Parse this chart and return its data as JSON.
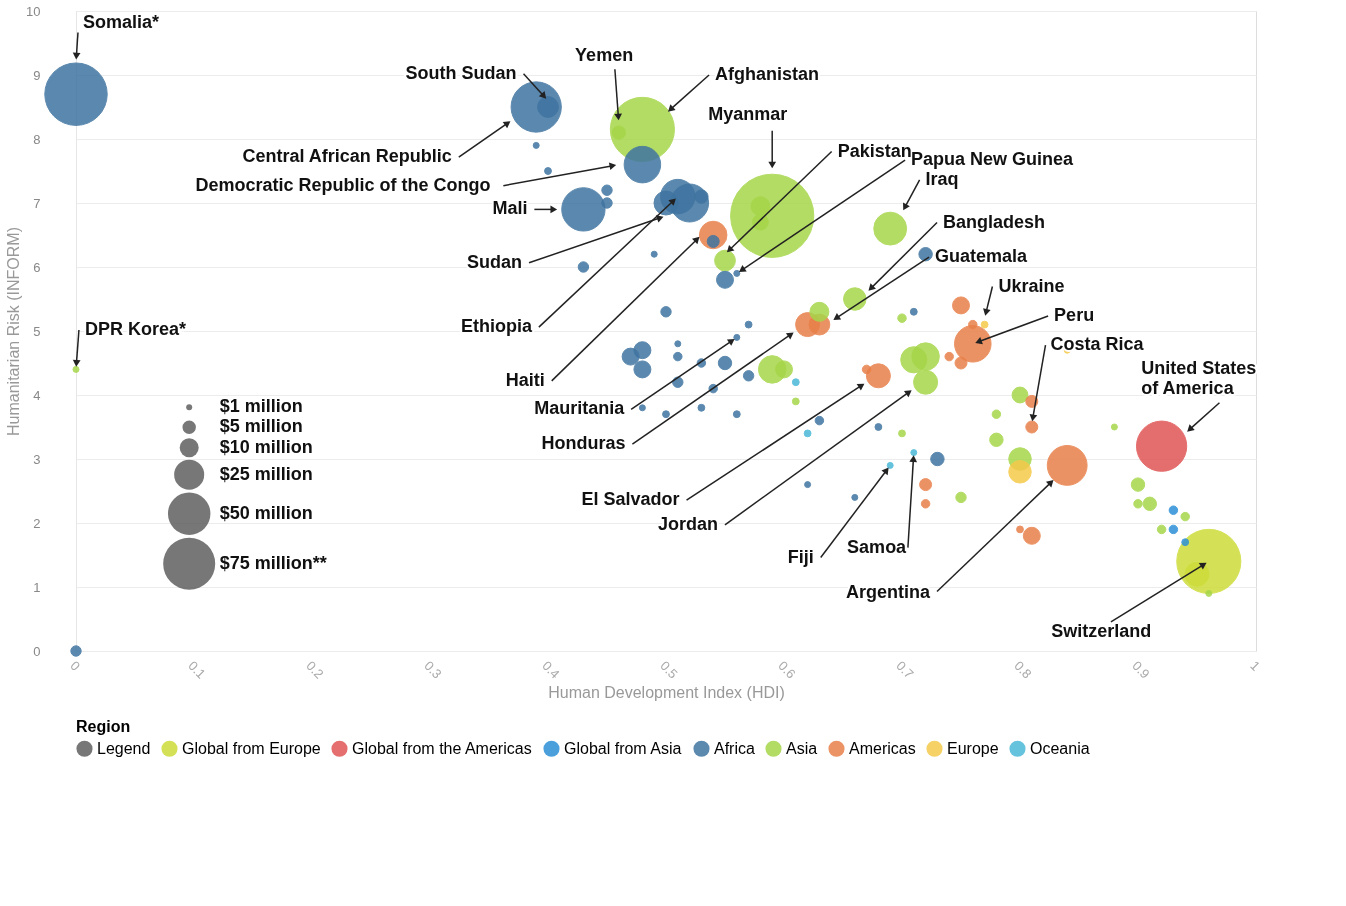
{
  "chart_data": {
    "type": "bubble",
    "xlabel": "Human Development Index (HDI)",
    "ylabel": "Humanitarian Risk (INFORM)",
    "legend_title": "Region",
    "legend": "bottom",
    "grid": "y",
    "xlim": [
      0,
      1
    ],
    "xticks": [
      0,
      0.1,
      0.2,
      0.3,
      0.4,
      0.5,
      0.6,
      0.7,
      0.8,
      0.9,
      1
    ],
    "ylim": [
      0,
      10
    ],
    "yticks": [
      0,
      1,
      2,
      3,
      4,
      5,
      6,
      7,
      8,
      9,
      10
    ],
    "size_legend": [
      {
        "value": 1,
        "label": "$1 million"
      },
      {
        "value": 5,
        "label": "$5 million"
      },
      {
        "value": 10,
        "label": "$10 million"
      },
      {
        "value": 25,
        "label": "$25 million"
      },
      {
        "value": 50,
        "label": "$50 million"
      },
      {
        "value": 75,
        "label": "$75 million**"
      }
    ],
    "series": [
      {
        "name": "Legend",
        "color": "#5f5f5f"
      },
      {
        "name": "Global from Europe",
        "color": "#cddc3a",
        "x": [
          0.96,
          0.95
        ],
        "values": [
          1.4,
          1.2
        ],
        "sizes": [
          114,
          16
        ]
      },
      {
        "name": "Global from the Americas",
        "color": "#e05555",
        "x": [
          0.92
        ],
        "values": [
          3.2
        ],
        "sizes": [
          70
        ]
      },
      {
        "name": "Global from Asia",
        "color": "#2b8fd6",
        "x": [
          0.93,
          0.93,
          0.94
        ],
        "values": [
          2.2,
          1.9,
          1.7
        ],
        "sizes": [
          2,
          2,
          1.3
        ]
      },
      {
        "name": "Africa",
        "color": "#3f74a0",
        "x": [
          0,
          0,
          0.39,
          0.4,
          0.39,
          0.4,
          0.48,
          0.43,
          0.45,
          0.45,
          0.52,
          0.51,
          0.5,
          0.53,
          0.43,
          0.49,
          0.54,
          0.55,
          0.5,
          0.57,
          0.47,
          0.48,
          0.48,
          0.51,
          0.51,
          0.53,
          0.55,
          0.51,
          0.54,
          0.57,
          0.5,
          0.53,
          0.56,
          0.48,
          0.63,
          0.62,
          0.68,
          0.71,
          0.72,
          0.73,
          0.66,
          0.56,
          0.56
        ],
        "values": [
          8.7,
          0,
          8.5,
          8.5,
          7.9,
          7.5,
          7.6,
          6.9,
          7.2,
          7.0,
          7.0,
          7.1,
          7.0,
          7.1,
          6.0,
          6.2,
          6.4,
          5.8,
          5.3,
          5.1,
          4.6,
          4.7,
          4.4,
          4.8,
          4.6,
          4.5,
          4.5,
          4.2,
          4.1,
          4.3,
          3.7,
          3.8,
          3.7,
          3.8,
          3.6,
          2.6,
          3.5,
          5.3,
          6.2,
          3.0,
          2.4,
          5.9,
          4.9
        ],
        "sizes": [
          108,
          3,
          70,
          12,
          1,
          1.3,
          37,
          52,
          3,
          3,
          40,
          33,
          16,
          5,
          3,
          1,
          4,
          8,
          3,
          1.3,
          8,
          8,
          8,
          1,
          2,
          2,
          5,
          3,
          2,
          3,
          1.3,
          1.3,
          1.3,
          1,
          2,
          1,
          1.3,
          1.3,
          5,
          5,
          1,
          1,
          1
        ]
      },
      {
        "name": "Asia",
        "color": "#a6d64a",
        "x": [
          0,
          0.48,
          0.46,
          0.59,
          0.58,
          0.58,
          0.55,
          0.69,
          0.66,
          0.63,
          0.59,
          0.6,
          0.61,
          0.71,
          0.72,
          0.72,
          0.7,
          0.78,
          0.8,
          0.78,
          0.8,
          0.75,
          0.7,
          0.9,
          0.9,
          0.91,
          0.92,
          0.94,
          0.96,
          0.88
        ],
        "values": [
          4.4,
          8.15,
          8.1,
          6.8,
          6.95,
          6.7,
          6.1,
          6.6,
          5.5,
          5.3,
          4.4,
          4.4,
          3.9,
          4.55,
          4.6,
          4.2,
          5.2,
          3.7,
          4.0,
          3.3,
          3.0,
          2.4,
          3.4,
          2.6,
          2.3,
          2.3,
          1.9,
          2.1,
          0.9,
          3.5
        ],
        "sizes": [
          1,
          114,
          5,
          192,
          10,
          7,
          12,
          30,
          14,
          10,
          21,
          8,
          1.3,
          19,
          21,
          16,
          2,
          2,
          7,
          5,
          14,
          3,
          1.3,
          5,
          2,
          5,
          2,
          2,
          1,
          1
        ]
      },
      {
        "name": "Americas",
        "color": "#e8804a",
        "x": [
          0.54,
          0.62,
          0.63,
          0.68,
          0.67,
          0.76,
          0.75,
          0.75,
          0.74,
          0.81,
          0.81,
          0.84,
          0.72,
          0.72,
          0.81,
          0.8,
          0.76
        ],
        "values": [
          6.5,
          5.1,
          5.1,
          4.3,
          4.4,
          4.8,
          5.4,
          4.5,
          4.6,
          3.5,
          3.9,
          2.9,
          2.6,
          2.3,
          1.8,
          1.9,
          5.1
        ],
        "sizes": [
          21,
          16,
          12,
          16,
          2,
          37,
          8,
          4,
          2,
          4,
          4,
          44,
          4,
          2,
          8,
          1.3,
          2
        ]
      },
      {
        "name": "Europe",
        "color": "#f5c94a",
        "x": [
          0.77,
          0.8,
          0.84
        ],
        "values": [
          5.1,
          2.8,
          4.7
        ],
        "sizes": [
          1.3,
          14,
          1
        ]
      },
      {
        "name": "Oceania",
        "color": "#4ab8d8",
        "x": [
          0.62,
          0.61,
          0.71,
          0.69
        ],
        "values": [
          3.4,
          4.2,
          3.1,
          2.9
        ],
        "sizes": [
          1.3,
          1.3,
          1,
          1
        ]
      }
    ],
    "annotations": [
      {
        "text": "Somalia*",
        "x": 0,
        "y": 9.2
      },
      {
        "text": "South Sudan",
        "x": 0.4,
        "y": 8.6
      },
      {
        "text": "Yemen",
        "x": 0.46,
        "y": 8.25
      },
      {
        "text": "Afghanistan",
        "x": 0.5,
        "y": 8.4
      },
      {
        "text": "Myanmar",
        "x": 0.59,
        "y": 7.5
      },
      {
        "text": "Central African Republic",
        "x": 0.37,
        "y": 8.3
      },
      {
        "text": "Democratic Republic of the Congo",
        "x": 0.46,
        "y": 7.6
      },
      {
        "text": "Mali",
        "x": 0.41,
        "y": 6.9
      },
      {
        "text": "Pakistan",
        "x": 0.55,
        "y": 6.2
      },
      {
        "text": "Papua New Guinea",
        "x": 0.56,
        "y": 5.9
      },
      {
        "text": "Iraq",
        "x": 0.7,
        "y": 6.85
      },
      {
        "text": "Sudan",
        "x": 0.5,
        "y": 6.8
      },
      {
        "text": "Bangladesh",
        "x": 0.67,
        "y": 5.6
      },
      {
        "text": "Guatemala",
        "x": 0.64,
        "y": 5.15
      },
      {
        "text": "Ethiopia",
        "x": 0.51,
        "y": 7.1
      },
      {
        "text": "Ukraine",
        "x": 0.77,
        "y": 5.2
      },
      {
        "text": "Peru",
        "x": 0.76,
        "y": 4.8
      },
      {
        "text": "Haiti",
        "x": 0.53,
        "y": 6.5
      },
      {
        "text": "Mauritania",
        "x": 0.56,
        "y": 4.9
      },
      {
        "text": "Costa Rica",
        "x": 0.81,
        "y": 3.55
      },
      {
        "text": "United States\nof America",
        "x": 0.94,
        "y": 3.4
      },
      {
        "text": "Honduras",
        "x": 0.61,
        "y": 5.0
      },
      {
        "text": "El Salvador",
        "x": 0.67,
        "y": 4.2
      },
      {
        "text": "Jordan",
        "x": 0.71,
        "y": 4.1
      },
      {
        "text": "Fiji",
        "x": 0.69,
        "y": 2.9
      },
      {
        "text": "Samoa",
        "x": 0.71,
        "y": 3.1
      },
      {
        "text": "Argentina",
        "x": 0.83,
        "y": 2.7
      },
      {
        "text": "Switzerland",
        "x": 0.96,
        "y": 1.4
      },
      {
        "text": "DPR Korea*",
        "x": 0,
        "y": 4.4
      }
    ]
  }
}
